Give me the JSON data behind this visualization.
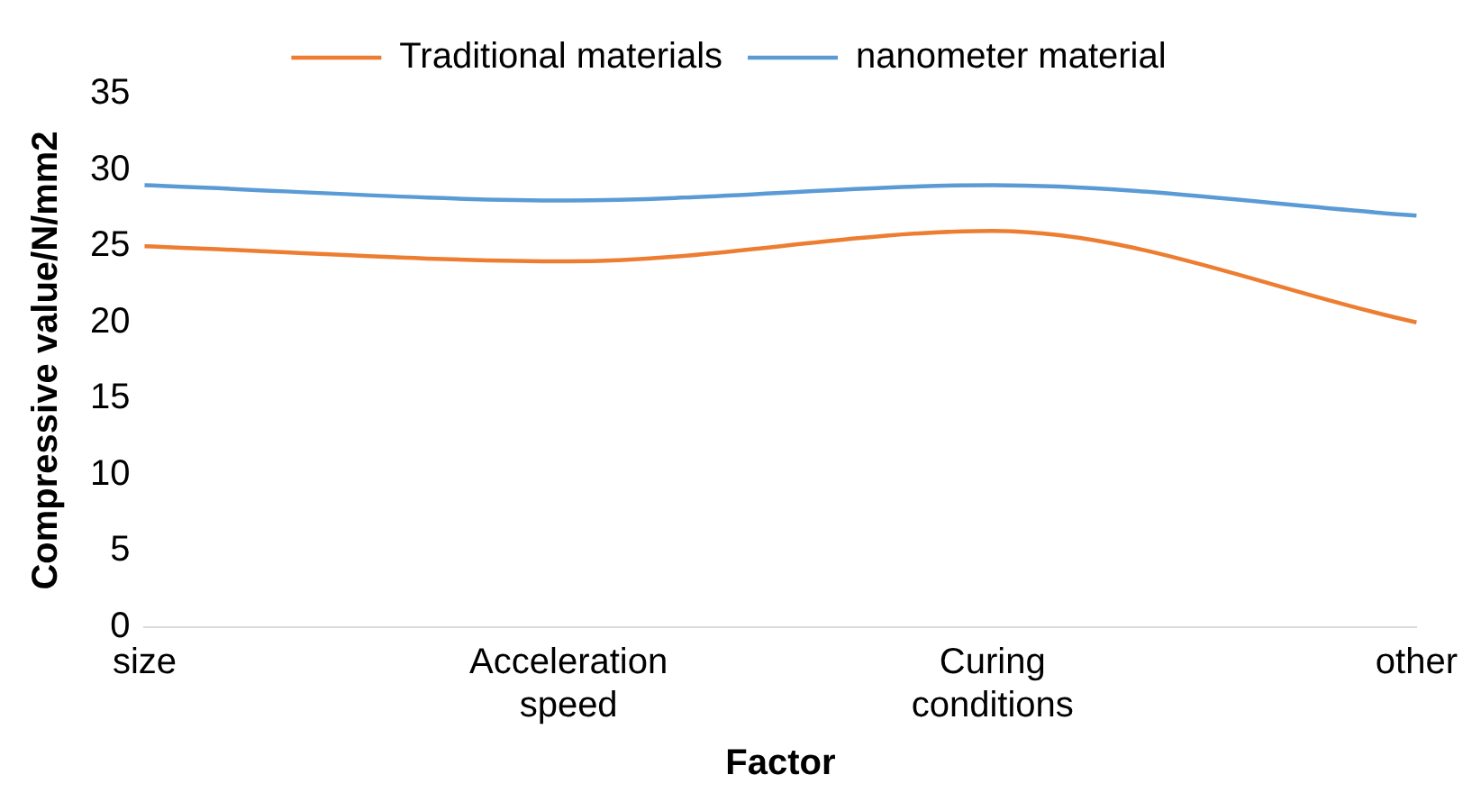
{
  "chart_data": {
    "type": "line",
    "xlabel": "Factor",
    "ylabel": "Compressive value/N/mm2",
    "categories": [
      "size",
      "Acceleration speed",
      "Curing conditions",
      "other"
    ],
    "series": [
      {
        "name": "Traditional materials",
        "color": "#ed7d31",
        "values": [
          25,
          24,
          26,
          20
        ]
      },
      {
        "name": "nanometer material",
        "color": "#5b9bd5",
        "values": [
          29,
          28,
          29,
          27
        ]
      }
    ],
    "ylim": [
      0,
      35
    ],
    "yticks": [
      0,
      5,
      10,
      15,
      20,
      25,
      30,
      35
    ],
    "grid": false,
    "legend": "top",
    "marker": "none",
    "line_style": "solid"
  }
}
